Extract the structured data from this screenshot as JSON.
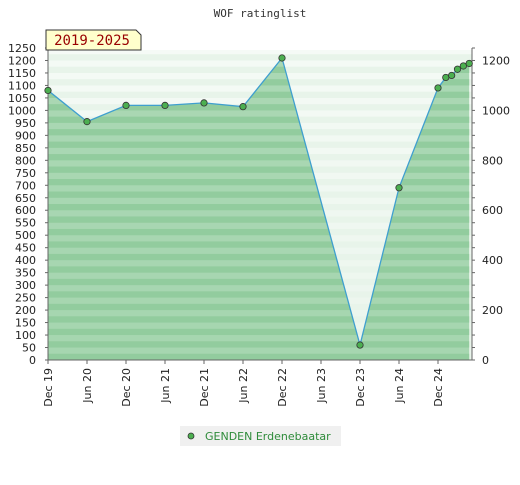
{
  "chart_data": {
    "type": "line",
    "title": "WOF ratinglist",
    "badge": "2019-2025",
    "xlabel": "",
    "ylabel": "",
    "ylim": [
      0,
      1250
    ],
    "left_ticks": [
      "0",
      "50",
      "100",
      "150",
      "200",
      "250",
      "300",
      "350",
      "400",
      "450",
      "500",
      "550",
      "600",
      "650",
      "700",
      "750",
      "800",
      "850",
      "900",
      "950",
      "1000",
      "1050",
      "1100",
      "1150",
      "1200",
      "1250"
    ],
    "right_ticks": [
      "0",
      "200",
      "400",
      "600",
      "800",
      "1000",
      "1200"
    ],
    "x_ticks": [
      "Dec 19",
      "Jun 20",
      "Dec 20",
      "Jun 21",
      "Dec 21",
      "Jun 22",
      "Dec 22",
      "Jun 23",
      "Dec 23",
      "Jun 24",
      "Dec 24"
    ],
    "series": [
      {
        "name": "GENDEN Erdenebaatar",
        "color": "#3f9fcf",
        "marker_color": "#4caf50",
        "points": [
          {
            "x": 0,
            "y": 1080
          },
          {
            "x": 1,
            "y": 955
          },
          {
            "x": 2,
            "y": 1020
          },
          {
            "x": 3,
            "y": 1020
          },
          {
            "x": 4,
            "y": 1030
          },
          {
            "x": 5,
            "y": 1015
          },
          {
            "x": 6,
            "y": 1210
          },
          {
            "x": 8,
            "y": 60
          },
          {
            "x": 9,
            "y": 690
          },
          {
            "x": 10,
            "y": 1090
          },
          {
            "x": 10.2,
            "y": 1132
          },
          {
            "x": 10.35,
            "y": 1140
          },
          {
            "x": 10.5,
            "y": 1165
          },
          {
            "x": 10.65,
            "y": 1178
          },
          {
            "x": 10.8,
            "y": 1188
          }
        ]
      }
    ],
    "grid": true,
    "legend_position": "bottom"
  },
  "colors": {
    "fill": "#6dbb7d",
    "band_light": "#e8f4ea",
    "band_dark": "#7fc38e",
    "line": "#3f9fcf",
    "badge_bg": "#ffffcc"
  }
}
